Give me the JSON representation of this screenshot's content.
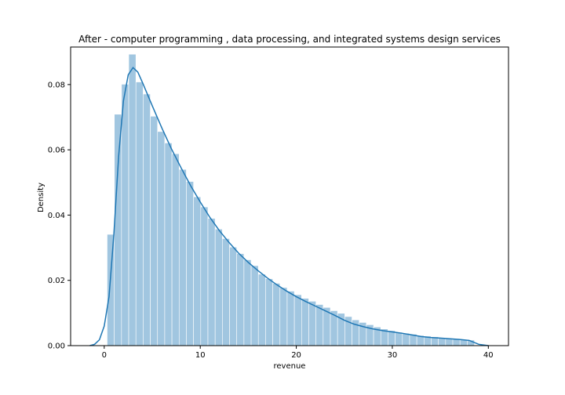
{
  "chart_data": {
    "type": "bar",
    "title": "After - computer programming , data processing, and integrated systems design services",
    "xlabel": "revenue",
    "ylabel": "Density",
    "xlim": [
      -3.5,
      42.1
    ],
    "ylim": [
      0,
      0.0915
    ],
    "x_ticks": [
      0,
      10,
      20,
      30,
      40
    ],
    "x_tick_labels": [
      "0",
      "10",
      "20",
      "30",
      "40"
    ],
    "y_ticks": [
      0,
      0.02,
      0.04,
      0.06,
      0.08
    ],
    "y_tick_labels": [
      "0.00",
      "0.02",
      "0.04",
      "0.06",
      "0.08"
    ],
    "grid": false,
    "colors": {
      "bar": "#a1c6e0",
      "kde": "#1f77b4"
    },
    "histogram": {
      "bin_start": 0.3,
      "bin_width": 0.75,
      "densities": [
        0.0341,
        0.0709,
        0.0801,
        0.0893,
        0.0808,
        0.0771,
        0.0703,
        0.0656,
        0.0621,
        0.0588,
        0.054,
        0.0503,
        0.0456,
        0.0425,
        0.039,
        0.0357,
        0.0328,
        0.0302,
        0.0282,
        0.0263,
        0.0245,
        0.0219,
        0.0205,
        0.0191,
        0.0178,
        0.0167,
        0.0156,
        0.0145,
        0.0136,
        0.0126,
        0.0117,
        0.0107,
        0.0099,
        0.0089,
        0.0079,
        0.0071,
        0.0064,
        0.0057,
        0.0051,
        0.0046,
        0.0041,
        0.0038,
        0.0035,
        0.0031,
        0.0029,
        0.0027,
        0.0024,
        0.0022,
        0.002,
        0.0018,
        0.0017
      ]
    },
    "kde": {
      "x": [
        -1.5,
        -1.0,
        -0.5,
        0,
        0.5,
        1,
        1.5,
        2,
        2.5,
        3,
        3.5,
        4,
        5,
        6,
        7,
        8,
        9,
        10,
        11,
        12,
        13,
        14,
        15,
        16,
        17,
        18,
        19,
        20,
        21,
        22,
        23,
        24,
        25,
        26,
        27,
        28,
        29,
        30,
        31,
        32,
        33,
        34,
        35,
        36,
        37,
        38,
        38.5,
        39,
        40
      ],
      "y": [
        0.0,
        0.0004,
        0.0018,
        0.006,
        0.015,
        0.034,
        0.058,
        0.075,
        0.083,
        0.0852,
        0.0838,
        0.0805,
        0.0735,
        0.0667,
        0.0603,
        0.0545,
        0.049,
        0.044,
        0.0393,
        0.0352,
        0.0316,
        0.0283,
        0.0255,
        0.023,
        0.0207,
        0.0186,
        0.0167,
        0.015,
        0.0135,
        0.0121,
        0.0107,
        0.0093,
        0.0078,
        0.0066,
        0.0058,
        0.0051,
        0.0046,
        0.0042,
        0.0038,
        0.0033,
        0.0028,
        0.0025,
        0.0023,
        0.0021,
        0.0019,
        0.0016,
        0.001,
        0.0004,
        0.0
      ]
    }
  }
}
